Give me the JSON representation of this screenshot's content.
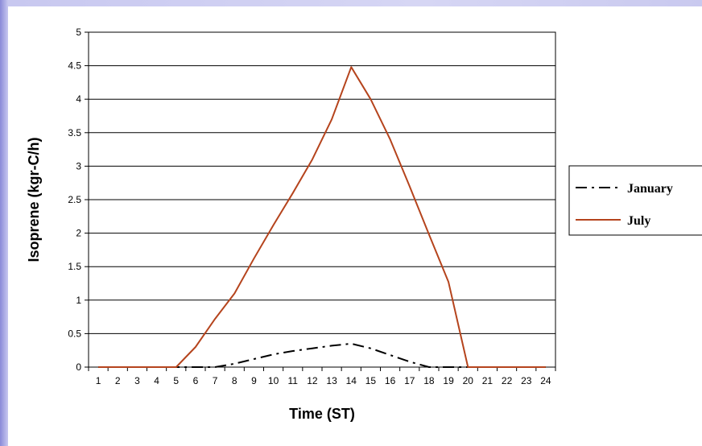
{
  "chart_data": {
    "type": "line",
    "xlabel": "Time (ST)",
    "ylabel": "Isoprene (kgr-C/h)",
    "ylim": [
      0,
      5
    ],
    "yticks": [
      "0",
      "0.5",
      "1",
      "1.5",
      "2",
      "2.5",
      "3",
      "3.5",
      "4",
      "4.5",
      "5"
    ],
    "categories": [
      "1",
      "2",
      "3",
      "4",
      "5",
      "6",
      "7",
      "8",
      "9",
      "10",
      "11",
      "12",
      "13",
      "14",
      "15",
      "16",
      "17",
      "18",
      "19",
      "20",
      "21",
      "22",
      "23",
      "24"
    ],
    "grid": "horizontal",
    "legend": "right",
    "series": [
      {
        "name": "January",
        "color": "#000000",
        "style": "dash-dot",
        "values": [
          0,
          0,
          0,
          0,
          0,
          0,
          0,
          0.05,
          0.12,
          0.19,
          0.24,
          0.28,
          0.32,
          0.35,
          0.28,
          0.18,
          0.08,
          0,
          0,
          0,
          0,
          0,
          0,
          0
        ]
      },
      {
        "name": "July",
        "color": "#b5441d",
        "style": "solid",
        "values": [
          0,
          0,
          0,
          0,
          0,
          0.3,
          0.72,
          1.1,
          1.62,
          2.12,
          2.6,
          3.1,
          3.7,
          4.48,
          4.0,
          3.4,
          2.7,
          1.98,
          1.27,
          0,
          0,
          0,
          0,
          0
        ]
      }
    ]
  }
}
